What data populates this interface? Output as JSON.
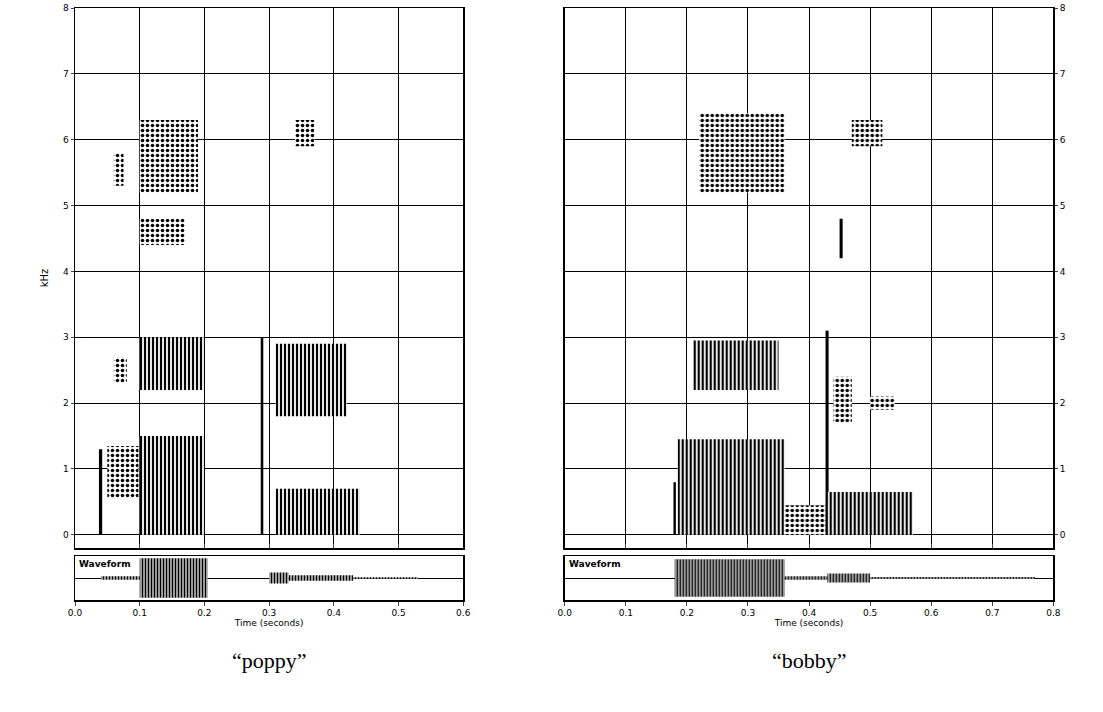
{
  "chart_data": [
    {
      "type": "spectrogram",
      "title": "“poppy”",
      "x_label": "Time (seconds)",
      "y_label": "kHz",
      "grid": true,
      "xlim": [
        0,
        0.6
      ],
      "xticks": [
        {
          "value": 0,
          "label": "0.0"
        },
        {
          "value": 0.1,
          "label": "0.1"
        },
        {
          "value": 0.2,
          "label": "0.2"
        },
        {
          "value": 0.3,
          "label": "0.3"
        },
        {
          "value": 0.4,
          "label": "0.4"
        },
        {
          "value": 0.5,
          "label": "0.5"
        },
        {
          "value": 0.6,
          "label": "0.6"
        }
      ],
      "ylim": [
        -0.2,
        8
      ],
      "yticks": [
        0,
        1,
        2,
        3,
        4,
        5,
        6,
        7,
        8
      ],
      "regions": [
        {
          "t0": 0.037,
          "t1": 0.042,
          "f0": 0,
          "f1": 1.3,
          "marker": "solid"
        },
        {
          "t0": 0.05,
          "t1": 0.098,
          "f0": 0.55,
          "f1": 1.35,
          "marker": "speckled"
        },
        {
          "t0": 0.06,
          "t1": 0.08,
          "f0": 2.3,
          "f1": 2.7,
          "marker": "speckled"
        },
        {
          "t0": 0.06,
          "t1": 0.075,
          "f0": 5.3,
          "f1": 5.8,
          "marker": "speckled"
        },
        {
          "t0": 0.1,
          "t1": 0.2,
          "f0": 0,
          "f1": 1.5,
          "marker": "striated"
        },
        {
          "t0": 0.1,
          "t1": 0.2,
          "f0": 2.2,
          "f1": 3.0,
          "marker": "striated"
        },
        {
          "t0": 0.1,
          "t1": 0.19,
          "f0": 5.2,
          "f1": 6.3,
          "marker": "speckled"
        },
        {
          "t0": 0.1,
          "t1": 0.17,
          "f0": 4.4,
          "f1": 4.8,
          "marker": "speckled"
        },
        {
          "t0": 0.287,
          "t1": 0.291,
          "f0": 0,
          "f1": 3.0,
          "marker": "solid"
        },
        {
          "t0": 0.31,
          "t1": 0.44,
          "f0": 0,
          "f1": 0.7,
          "marker": "striated"
        },
        {
          "t0": 0.31,
          "t1": 0.42,
          "f0": 1.8,
          "f1": 2.9,
          "marker": "striated"
        },
        {
          "t0": 0.34,
          "t1": 0.37,
          "f0": 5.9,
          "f1": 6.3,
          "marker": "speckled"
        }
      ],
      "waveform": {
        "label": "Waveform",
        "ylim": [
          -1,
          1
        ],
        "segments": [
          {
            "t0": 0.04,
            "t1": 0.1,
            "lo": -0.08,
            "hi": 0.08
          },
          {
            "t0": 0.1,
            "t1": 0.205,
            "lo": -0.9,
            "hi": 0.9
          },
          {
            "t0": 0.3,
            "t1": 0.33,
            "lo": -0.25,
            "hi": 0.25
          },
          {
            "t0": 0.33,
            "t1": 0.43,
            "lo": -0.12,
            "hi": 0.12
          },
          {
            "t0": 0.43,
            "t1": 0.53,
            "lo": -0.03,
            "hi": 0.03
          }
        ]
      }
    },
    {
      "type": "spectrogram",
      "title": "“bobby”",
      "x_label": "Time (seconds)",
      "grid": true,
      "xlim": [
        0,
        0.8
      ],
      "xticks": [
        {
          "value": 0,
          "label": "0.0"
        },
        {
          "value": 0.1,
          "label": "0.1"
        },
        {
          "value": 0.2,
          "label": "0.2"
        },
        {
          "value": 0.3,
          "label": "0.3"
        },
        {
          "value": 0.4,
          "label": "0.4"
        },
        {
          "value": 0.5,
          "label": "0.5"
        },
        {
          "value": 0.6,
          "label": "0.6"
        },
        {
          "value": 0.7,
          "label": "0.7"
        },
        {
          "value": 0.8,
          "label": "0.8"
        }
      ],
      "ylim": [
        -0.2,
        8
      ],
      "yticks": [
        0,
        1,
        2,
        3,
        4,
        5,
        6,
        7,
        8
      ],
      "regions": [
        {
          "t0": 0.178,
          "t1": 0.182,
          "f0": 0,
          "f1": 0.8,
          "marker": "solid"
        },
        {
          "t0": 0.185,
          "t1": 0.36,
          "f0": 0,
          "f1": 1.45,
          "marker": "striated"
        },
        {
          "t0": 0.21,
          "t1": 0.35,
          "f0": 2.2,
          "f1": 2.95,
          "marker": "striated"
        },
        {
          "t0": 0.22,
          "t1": 0.36,
          "f0": 5.2,
          "f1": 6.4,
          "marker": "speckled"
        },
        {
          "t0": 0.36,
          "t1": 0.43,
          "f0": 0,
          "f1": 0.45,
          "marker": "speckled"
        },
        {
          "t0": 0.427,
          "t1": 0.432,
          "f0": 0,
          "f1": 3.1,
          "marker": "solid"
        },
        {
          "t0": 0.43,
          "t1": 0.57,
          "f0": 0,
          "f1": 0.65,
          "marker": "striated"
        },
        {
          "t0": 0.44,
          "t1": 0.47,
          "f0": 1.7,
          "f1": 2.4,
          "marker": "speckled"
        },
        {
          "t0": 0.5,
          "t1": 0.54,
          "f0": 1.9,
          "f1": 2.1,
          "marker": "speckled"
        },
        {
          "t0": 0.47,
          "t1": 0.52,
          "f0": 5.9,
          "f1": 6.3,
          "marker": "speckled"
        },
        {
          "t0": 0.45,
          "t1": 0.455,
          "f0": 4.2,
          "f1": 4.8,
          "marker": "solid"
        }
      ],
      "waveform": {
        "label": "Waveform",
        "ylim": [
          -1,
          1
        ],
        "segments": [
          {
            "t0": 0.18,
            "t1": 0.36,
            "lo": -0.85,
            "hi": 0.85
          },
          {
            "t0": 0.36,
            "t1": 0.43,
            "lo": -0.08,
            "hi": 0.08
          },
          {
            "t0": 0.43,
            "t1": 0.5,
            "lo": -0.2,
            "hi": 0.2
          },
          {
            "t0": 0.5,
            "t1": 0.77,
            "lo": -0.04,
            "hi": 0.04
          }
        ]
      }
    }
  ]
}
